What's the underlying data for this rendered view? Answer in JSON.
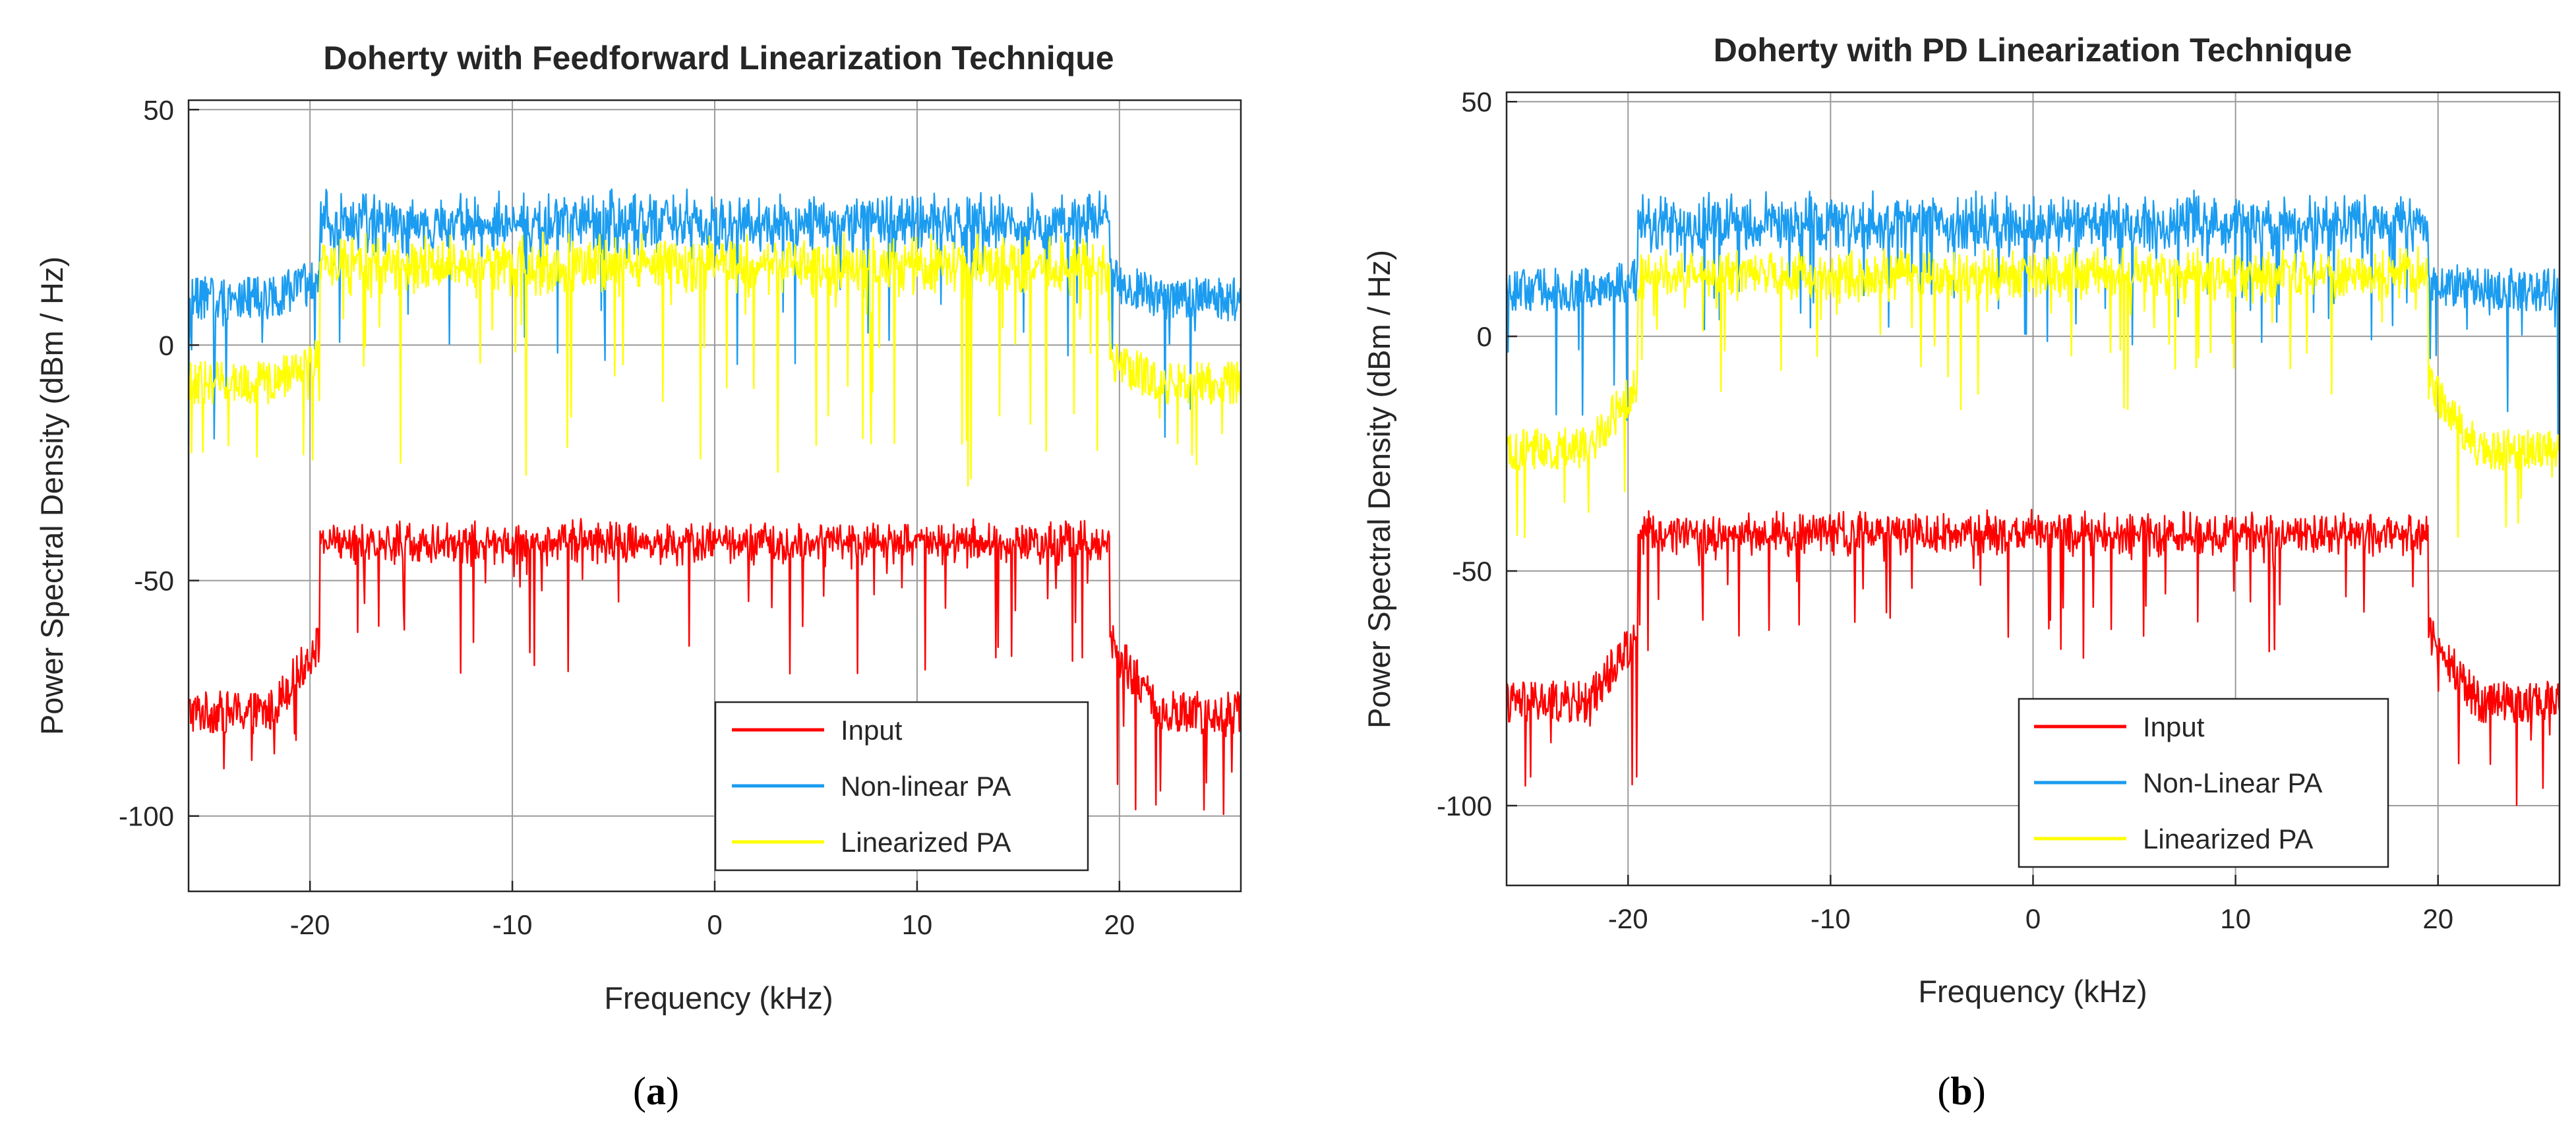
{
  "chart_data": [
    {
      "type": "line",
      "panel": "a",
      "title": "Doherty with Feedforward Linearization Technique",
      "xlabel": "Frequency (kHz)",
      "ylabel": "Power Spectral Density (dBm / Hz)",
      "xlim": [
        -26,
        26
      ],
      "ylim": [
        -116,
        52
      ],
      "xticks": [
        -20,
        -10,
        0,
        10,
        20
      ],
      "xtick_labels": [
        "-20",
        "-10",
        "0",
        "10",
        "20"
      ],
      "yticks": [
        50,
        0,
        -50,
        -100
      ],
      "ytick_labels": [
        "50",
        "0",
        "-50",
        "-100"
      ],
      "grid": true,
      "legend_position": "bottom-right",
      "caption": "a",
      "series": [
        {
          "name": "Input",
          "color": "#ff0000",
          "inband": {
            "level": -42,
            "spread": 5,
            "dips": -70
          },
          "outband": {
            "edge": -63,
            "far": -78,
            "dips": -100
          },
          "band_edge_kHz": 19.5
        },
        {
          "name": "Non-linear PA",
          "color": "#1b9cf0",
          "inband": {
            "level": 26,
            "spread": 7,
            "dips": -5
          },
          "outband": {
            "edge": 14,
            "far": 10,
            "dips": -22
          },
          "band_edge_kHz": 19.5
        },
        {
          "name": "Linearized PA",
          "color": "#ffff00",
          "inband": {
            "level": 17,
            "spread": 7,
            "dips": -30
          },
          "outband": {
            "edge": -3,
            "far": -8,
            "dips": -26
          },
          "band_edge_kHz": 19.5
        }
      ]
    },
    {
      "type": "line",
      "panel": "b",
      "title": "Doherty with PD Linearization Technique",
      "xlabel": "Frequency (kHz)",
      "ylabel": "Power Spectral Density (dBm / Hz)",
      "xlim": [
        -26,
        26
      ],
      "ylim": [
        -117,
        52
      ],
      "xticks": [
        -20,
        -10,
        0,
        10,
        20
      ],
      "xtick_labels": [
        "-20",
        "-10",
        "0",
        "10",
        "20"
      ],
      "yticks": [
        50,
        0,
        -50,
        -100
      ],
      "ytick_labels": [
        "50",
        "0",
        "-50",
        "-100"
      ],
      "grid": true,
      "legend_position": "bottom-right",
      "caption": "b",
      "series": [
        {
          "name": "Input",
          "color": "#ff0000",
          "inband": {
            "level": -42,
            "spread": 5,
            "dips": -70
          },
          "outband": {
            "edge": -63,
            "far": -78,
            "dips": -100
          },
          "band_edge_kHz": 19.5
        },
        {
          "name": "Non-Linear PA",
          "color": "#1b9cf0",
          "inband": {
            "level": 24,
            "spread": 7,
            "dips": -2
          },
          "outband": {
            "edge": 12,
            "far": 10,
            "dips": -22
          },
          "band_edge_kHz": 19.5
        },
        {
          "name": "Linearized PA",
          "color": "#ffff00",
          "inband": {
            "level": 13,
            "spread": 6,
            "dips": -16
          },
          "outband": {
            "edge": -10,
            "far": -24,
            "dips": -45
          },
          "band_edge_kHz": 19.5
        }
      ]
    }
  ]
}
